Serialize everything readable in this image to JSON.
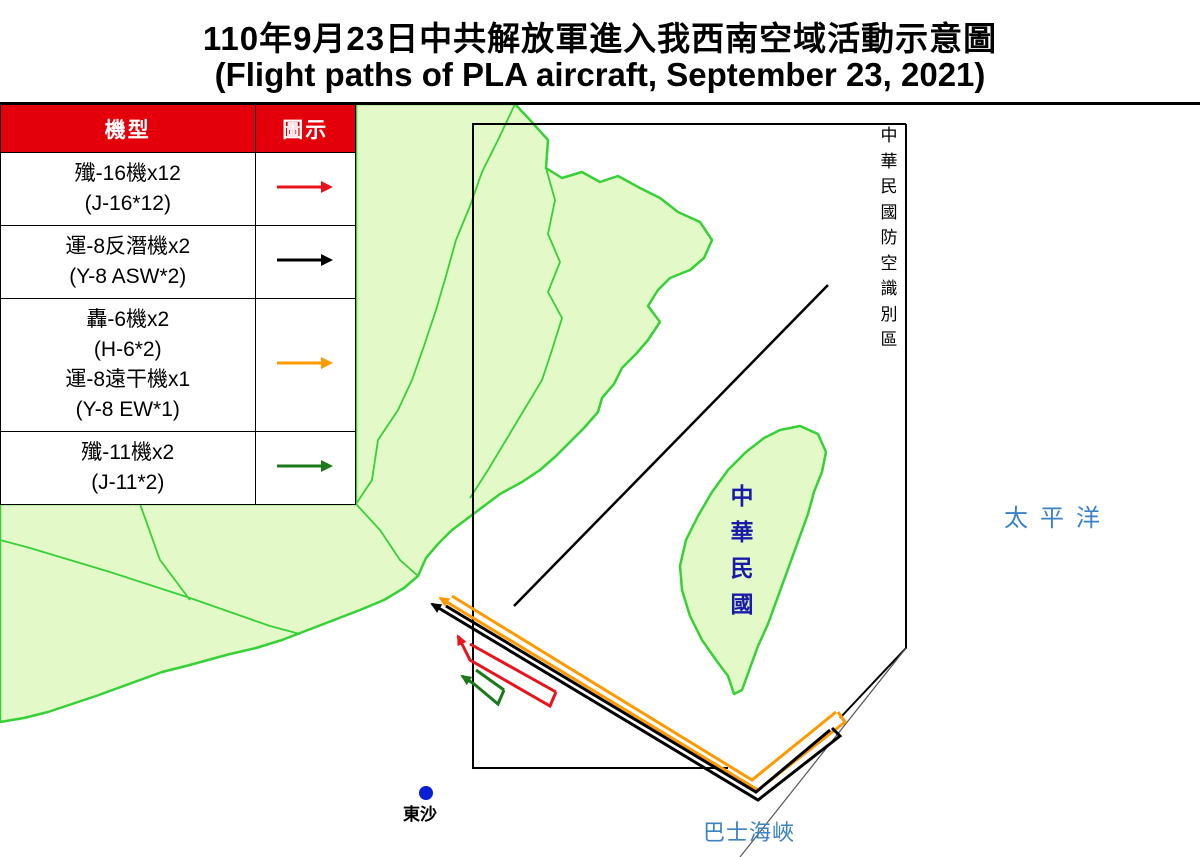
{
  "header": {
    "title_zh": "110年9月23日中共解放軍進入我西南空域活動示意圖",
    "title_en": "(Flight paths of PLA aircraft, September 23, 2021)"
  },
  "legend": {
    "col_type": "機型",
    "col_symbol": "圖示",
    "rows": [
      {
        "lines": [
          "殲-16機x12",
          "(J-16*12)"
        ],
        "color": "#e8141c"
      },
      {
        "lines": [
          "運-8反潛機x2",
          "(Y-8 ASW*2)"
        ],
        "color": "#000000"
      },
      {
        "lines": [
          "轟-6機x2",
          "(H-6*2)",
          "運-8遠干機x1",
          "(Y-8 EW*1)"
        ],
        "color": "#ff9900"
      },
      {
        "lines": [
          "殲-11機x2",
          "(J-11*2)"
        ],
        "color": "#1a7a1a"
      }
    ]
  },
  "map": {
    "adiz_label": [
      "中",
      "華",
      "民",
      "國",
      "防",
      "空",
      "識",
      "別",
      "區"
    ],
    "roc_label": [
      "中",
      "華",
      "民",
      "國"
    ],
    "pacific_label": "太平洋",
    "bashi_label": "巴士海峽",
    "dongsha_label": "東沙",
    "colors": {
      "land": "#e3f9c8",
      "coast": "#36d136",
      "water": "#ffffff",
      "adiz_border": "#000000",
      "dongsha_marker": "#0a1ed6",
      "ocean_label": "#3b82c4"
    }
  }
}
